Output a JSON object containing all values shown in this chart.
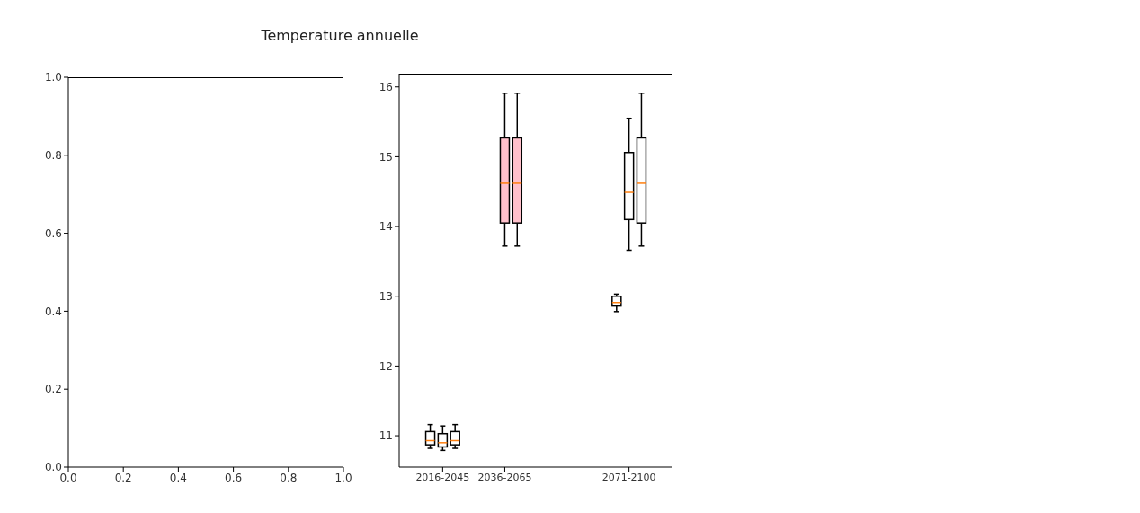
{
  "chart_data": [
    {
      "type": "scatter",
      "title": "Temperature annuelle",
      "xlim": [
        0,
        1
      ],
      "ylim": [
        0,
        1
      ],
      "xticks": [
        {
          "value": 0,
          "label": "0.0"
        },
        0.2,
        0.4,
        0.6,
        0.8,
        {
          "value": 1,
          "label": "1.0"
        }
      ],
      "yticks": [
        {
          "value": 0,
          "label": "0.0"
        },
        0.2,
        0.4,
        0.6,
        0.8,
        {
          "value": 1,
          "label": "1.0"
        }
      ]
    },
    {
      "type": "box",
      "ylim": [
        10.55,
        16.19
      ],
      "yticks": [
        11,
        12,
        13,
        14,
        15,
        16
      ],
      "categories": [
        null,
        null,
        null,
        "2016-2045",
        null,
        null,
        null,
        null,
        "2036-2065",
        null,
        null,
        null,
        null,
        null,
        null,
        null,
        null,
        null,
        "2071-2100",
        null,
        null,
        null
      ],
      "series": [
        {
          "color": "#ffffff",
          "boxes": [
            null,
            null,
            {
              "low": 10.82,
              "q1": 10.87,
              "median": 10.93,
              "q3": 11.06,
              "high": 11.16
            },
            {
              "low": 10.79,
              "q1": 10.84,
              "median": 10.9,
              "q3": 11.03,
              "high": 11.14
            },
            {
              "low": 10.82,
              "q1": 10.87,
              "median": 10.93,
              "q3": 11.06,
              "high": 11.16
            },
            null,
            null,
            null,
            null,
            null,
            null,
            null,
            null,
            null,
            null,
            null,
            null,
            {
              "low": 12.78,
              "q1": 12.86,
              "median": 12.91,
              "q3": 13.0,
              "high": 13.03
            },
            {
              "low": 13.66,
              "q1": 14.1,
              "median": 14.49,
              "q3": 15.06,
              "high": 15.55
            },
            {
              "low": 13.72,
              "q1": 14.05,
              "median": 14.62,
              "q3": 15.27,
              "high": 15.91
            },
            null,
            null
          ]
        },
        {
          "color": "#ffc0cb",
          "boxes": [
            null,
            null,
            null,
            null,
            null,
            null,
            null,
            null,
            {
              "low": 13.72,
              "q1": 14.05,
              "median": 14.62,
              "q3": 15.27,
              "high": 15.91
            },
            {
              "low": 13.72,
              "q1": 14.05,
              "median": 14.62,
              "q3": 15.27,
              "high": 15.91
            },
            null,
            null,
            null,
            null,
            null,
            null,
            null,
            null,
            null,
            null,
            null,
            null
          ]
        }
      ]
    }
  ]
}
